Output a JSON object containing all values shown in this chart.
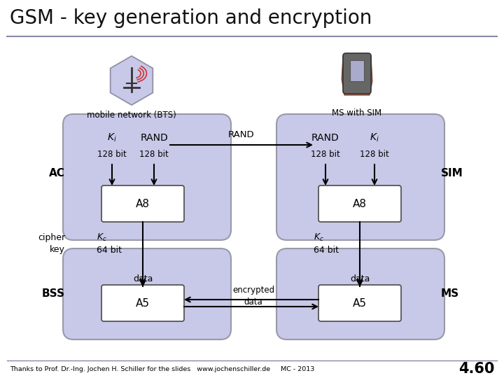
{
  "title": "GSM - key generation and encryption",
  "bg_color": "#ffffff",
  "box_fill": "#c8c8e8",
  "box_edge": "#9999aa",
  "inner_box_fill": "#ffffff",
  "inner_box_edge": "#555555",
  "title_fontsize": 20,
  "footer_text": "Thanks to Prof. Dr.-Ing. Jochen H. Schiller for the slides   www.jochenschiller.de     MC - 2013",
  "footer_number": "4.60",
  "label_AC": "AC",
  "label_cipher": "cipher\nkey",
  "label_BSS": "BSS",
  "label_SIM": "SIM",
  "label_MS": "MS",
  "label_mobile": "mobile network (BTS)",
  "label_MS_SIM": "MS with SIM"
}
